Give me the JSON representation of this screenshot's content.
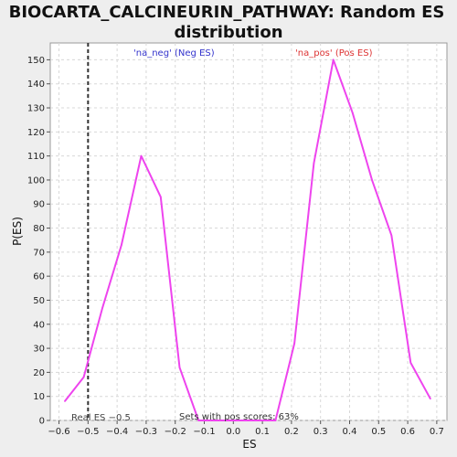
{
  "chart_data": {
    "type": "line",
    "title": "BIOCARTA_CALCINEURIN_PATHWAY: Random ES distribution",
    "title_lines": [
      "BIOCARTA_CALCINEURIN_PATHWAY: Random ES",
      "distribution"
    ],
    "xlabel": "ES",
    "ylabel": "P(ES)",
    "xlim": [
      -0.63,
      0.735
    ],
    "ylim": [
      0,
      157
    ],
    "x_ticks": [
      -0.6,
      -0.5,
      -0.4,
      -0.3,
      -0.2,
      -0.1,
      0.0,
      0.1,
      0.2,
      0.3,
      0.4,
      0.5,
      0.6,
      0.7
    ],
    "x_tick_labels": [
      "−0.6",
      "−0.5",
      "−0.4",
      "−0.3",
      "−0.2",
      "−0.1",
      "0.0",
      "0.1",
      "0.2",
      "0.3",
      "0.4",
      "0.5",
      "0.6",
      "0.7"
    ],
    "y_ticks": [
      0,
      10,
      20,
      30,
      40,
      50,
      60,
      70,
      80,
      90,
      100,
      110,
      120,
      130,
      140,
      150
    ],
    "grid": true,
    "series": [
      {
        "color": "#ee44ee",
        "x": [
          -0.58,
          -0.515,
          -0.45,
          -0.385,
          -0.317,
          -0.25,
          -0.185,
          -0.12,
          -0.055,
          0.01,
          0.075,
          0.145,
          0.21,
          0.277,
          0.344,
          0.41,
          0.477,
          0.544,
          0.61,
          0.678
        ],
        "y": [
          8,
          18,
          47,
          73,
          110,
          93,
          22,
          0,
          0,
          0,
          0,
          0,
          32,
          107,
          150,
          128,
          100,
          77,
          24,
          9
        ]
      }
    ],
    "real_es": -0.5,
    "annotations": {
      "neg_label": "'na_neg' (Neg ES)",
      "neg_color": "#3333cc",
      "pos_label": "'na_pos' (Pos ES)",
      "pos_color": "#dd3333",
      "real_es_label": "Real ES −0.5",
      "pos_scores_label": "Sets with pos scores: 63%"
    }
  }
}
